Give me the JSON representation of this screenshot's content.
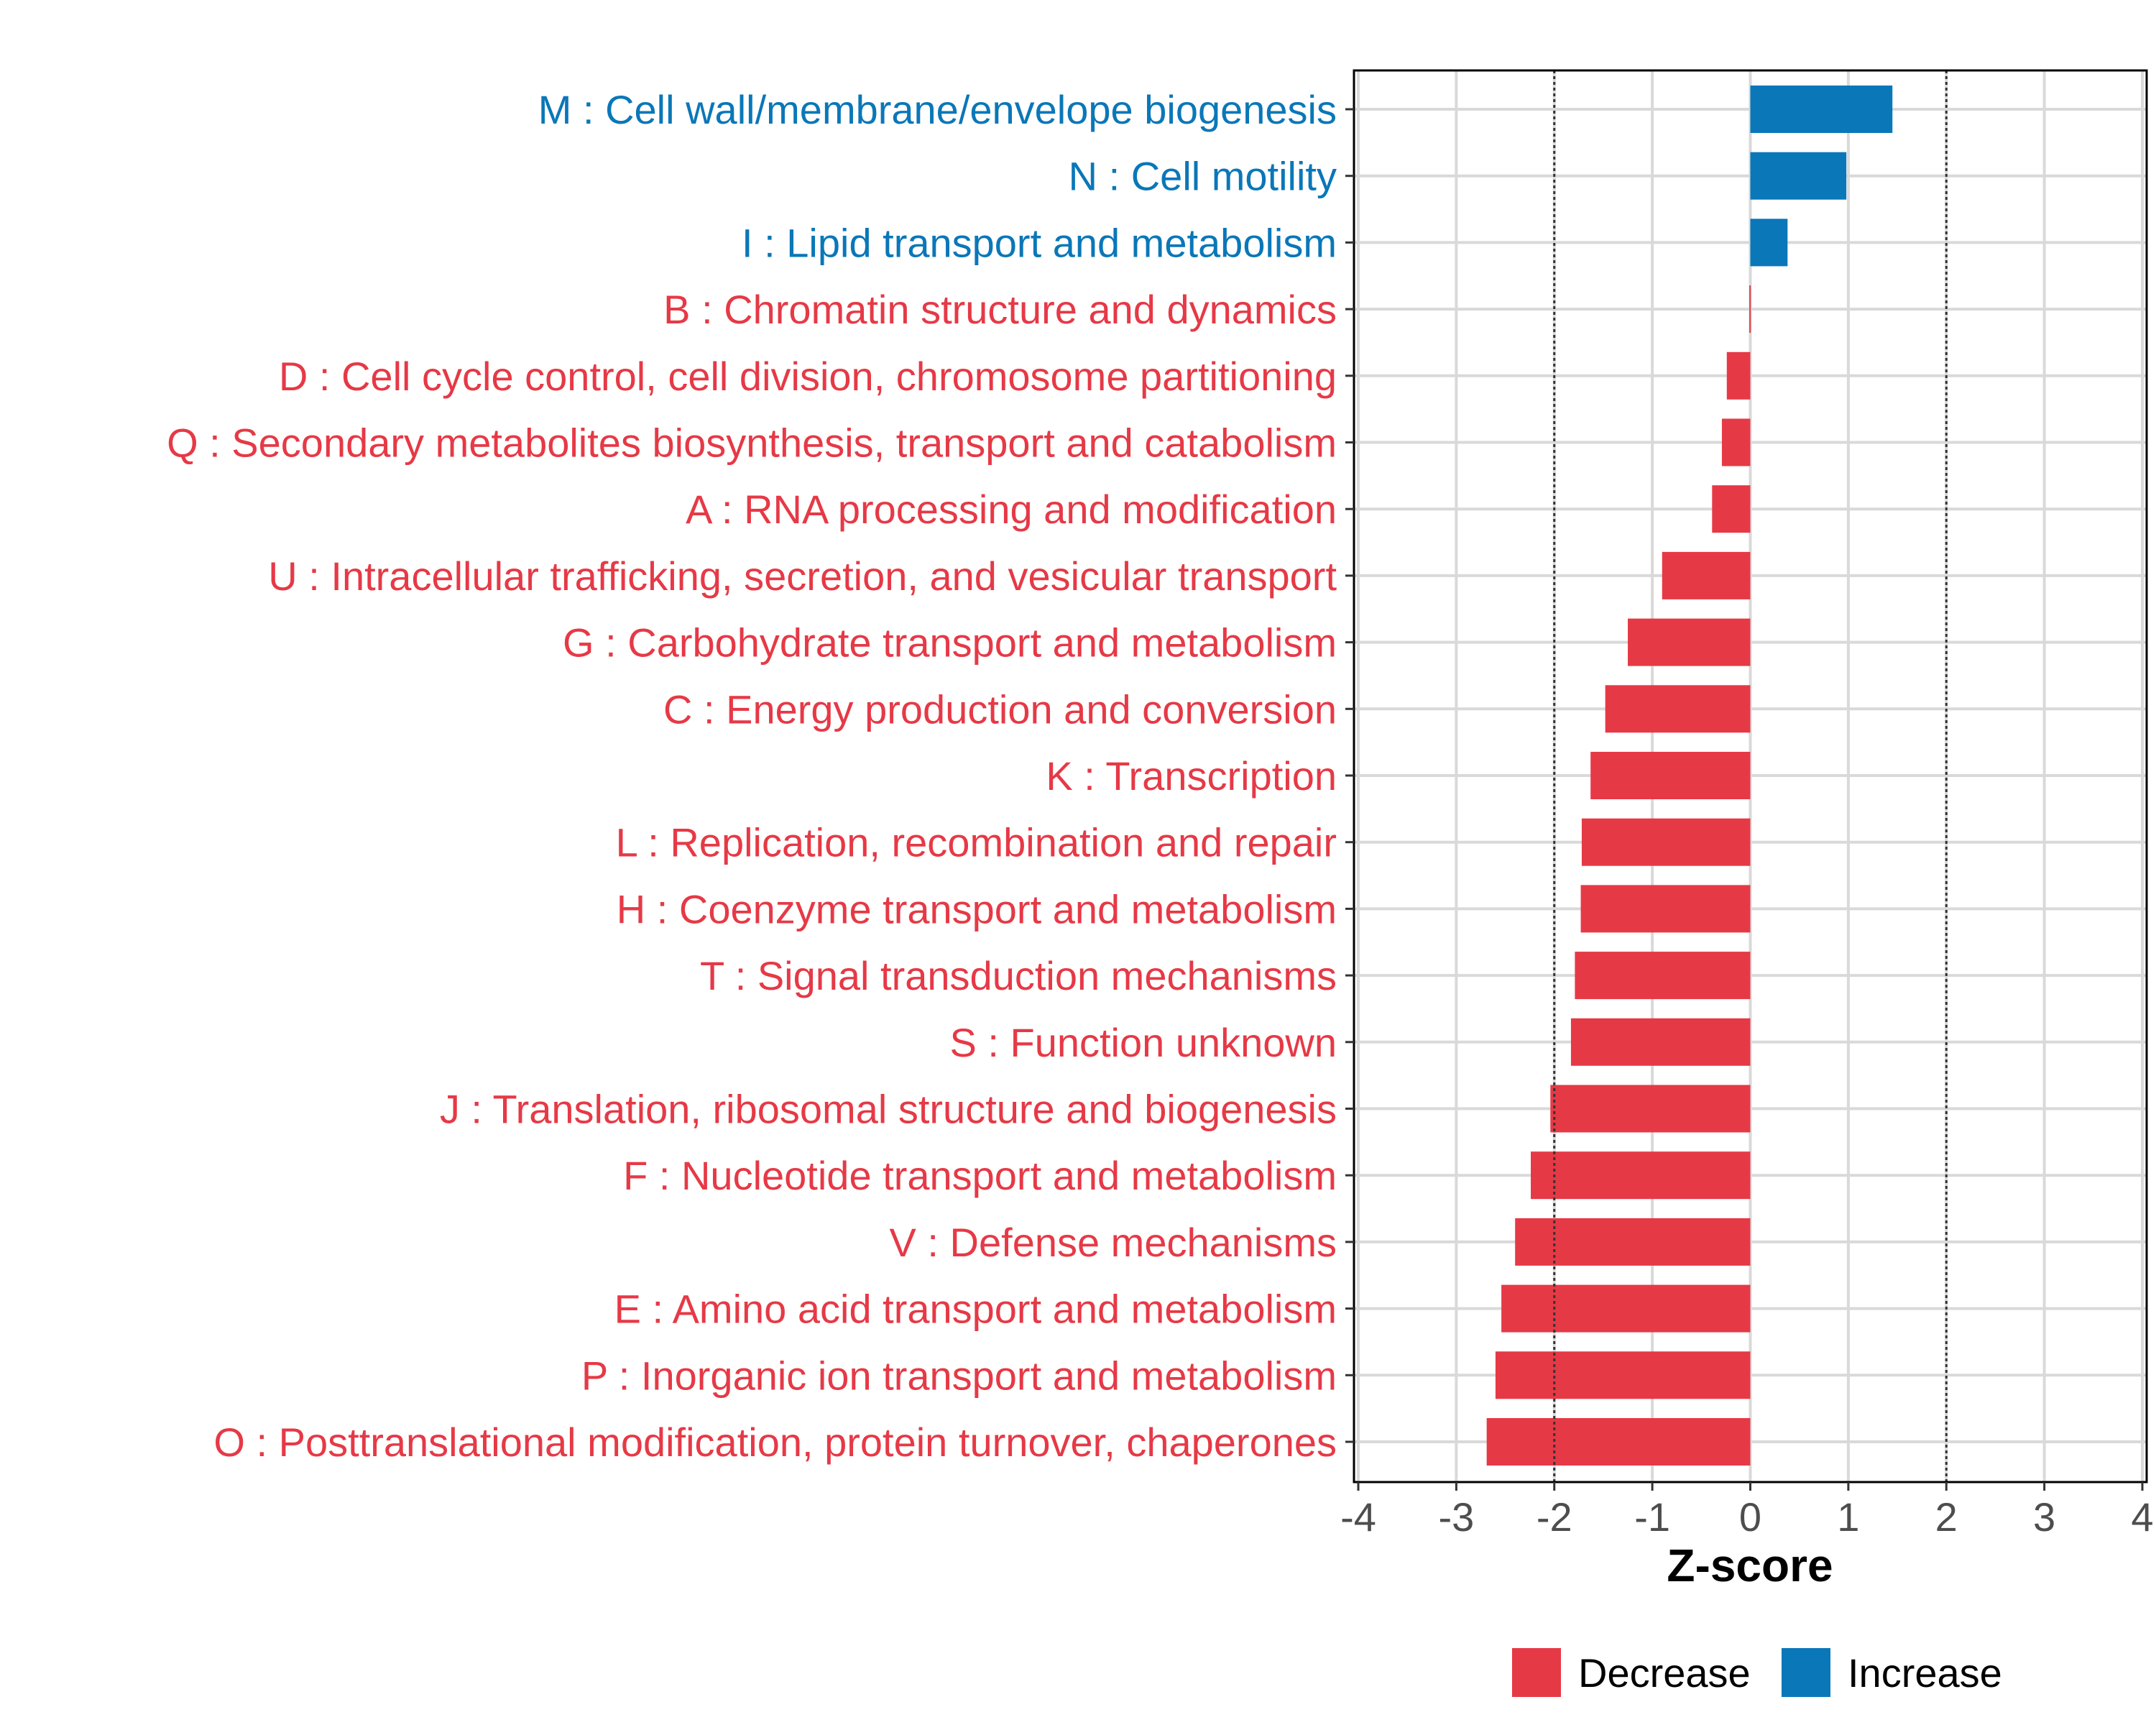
{
  "chart_data": {
    "type": "bar",
    "orientation": "horizontal",
    "title": "",
    "xlabel": "Z-score",
    "ylabel": "",
    "xlim": [
      -4,
      4
    ],
    "xticks": [
      "-4",
      "-3",
      "-2",
      "-1",
      "0",
      "1",
      "2",
      "3",
      "4"
    ],
    "reference_lines": [
      -2,
      2
    ],
    "grid": true,
    "legend_position": "bottom",
    "colors": {
      "Decrease": "#E63946",
      "Increase": "#0A77B8"
    },
    "legend": [
      {
        "label": "Decrease",
        "color": "#E63946"
      },
      {
        "label": "Increase",
        "color": "#0A77B8"
      }
    ],
    "categories": [
      "M : Cell wall/membrane/envelope biogenesis",
      "N : Cell motility",
      "I : Lipid transport and metabolism",
      "B : Chromatin structure and dynamics",
      "D : Cell cycle control, cell division, chromosome partitioning",
      "Q : Secondary metabolites biosynthesis, transport and catabolism",
      "A : RNA processing and modification",
      "U : Intracellular trafficking, secretion, and vesicular transport",
      "G : Carbohydrate transport and metabolism",
      "C : Energy production and conversion",
      "K : Transcription",
      "L : Replication, recombination and repair",
      "H : Coenzyme transport and metabolism",
      "T : Signal transduction mechanisms",
      "S : Function unknown",
      "J : Translation, ribosomal structure and biogenesis",
      "F : Nucleotide transport and metabolism",
      "V : Defense mechanisms",
      "E : Amino acid transport and metabolism",
      "P : Inorganic ion transport and metabolism",
      "O : Posttranslational modification, protein turnover, chaperones"
    ],
    "values": [
      1.45,
      0.98,
      0.38,
      -0.01,
      -0.24,
      -0.29,
      -0.39,
      -0.9,
      -1.25,
      -1.48,
      -1.63,
      -1.72,
      -1.73,
      -1.79,
      -1.83,
      -2.04,
      -2.24,
      -2.4,
      -2.54,
      -2.6,
      -2.69
    ],
    "groups": [
      "Increase",
      "Increase",
      "Increase",
      "Decrease",
      "Decrease",
      "Decrease",
      "Decrease",
      "Decrease",
      "Decrease",
      "Decrease",
      "Decrease",
      "Decrease",
      "Decrease",
      "Decrease",
      "Decrease",
      "Decrease",
      "Decrease",
      "Decrease",
      "Decrease",
      "Decrease",
      "Decrease"
    ]
  }
}
